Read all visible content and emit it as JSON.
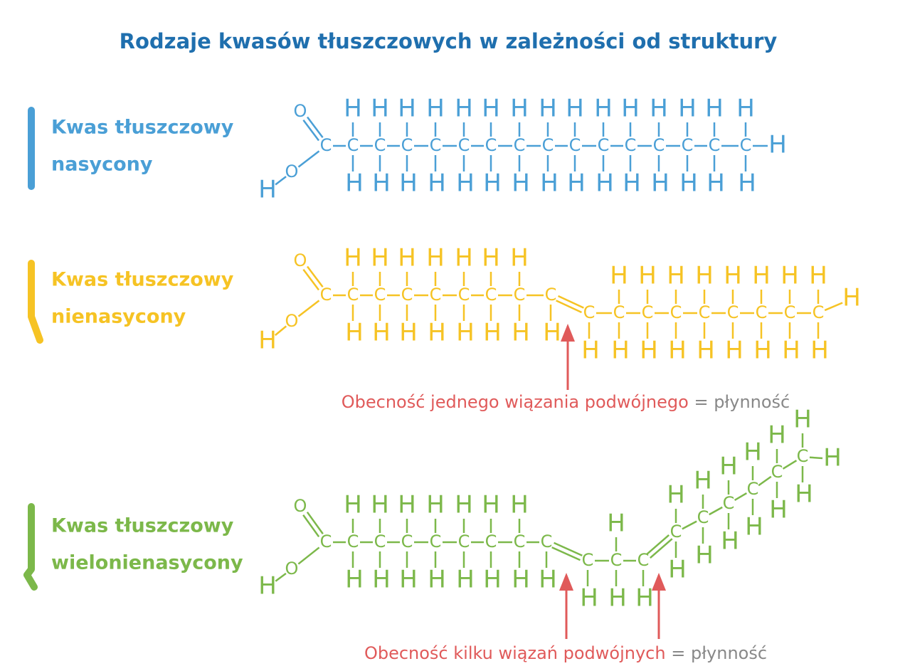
{
  "title": "Rodzaje kwasów tłuszczowych w zależności od struktury",
  "molecules": [
    {
      "label": [
        "Kwas tłuszczowy",
        "nasycony"
      ],
      "acid": {
        "carbon": "C",
        "oxygen_double": "O",
        "oxygen": "O",
        "hydrogen": "H"
      },
      "carbons": [
        {
          "atom": "C",
          "above": "H",
          "below": "H"
        },
        {
          "atom": "C",
          "above": "H",
          "below": "H"
        },
        {
          "atom": "C",
          "above": "H",
          "below": "H"
        },
        {
          "atom": "C",
          "above": "H",
          "below": "H"
        },
        {
          "atom": "C",
          "above": "H",
          "below": "H"
        },
        {
          "atom": "C",
          "above": "H",
          "below": "H"
        },
        {
          "atom": "C",
          "above": "H",
          "below": "H"
        },
        {
          "atom": "C",
          "above": "H",
          "below": "H"
        },
        {
          "atom": "C",
          "above": "H",
          "below": "H"
        },
        {
          "atom": "C",
          "above": "H",
          "below": "H"
        },
        {
          "atom": "C",
          "above": "H",
          "below": "H"
        },
        {
          "atom": "C",
          "above": "H",
          "below": "H"
        },
        {
          "atom": "C",
          "above": "H",
          "below": "H"
        },
        {
          "atom": "C",
          "above": "H",
          "below": "H"
        },
        {
          "atom": "C",
          "above": "H",
          "below": "H"
        }
      ],
      "end": "H"
    },
    {
      "label": [
        "Kwas tłuszczowy",
        "nienasycony"
      ],
      "acid": {
        "carbon": "C",
        "oxygen_double": "O",
        "oxygen": "O",
        "hydrogen": "H"
      },
      "carbons": [
        {
          "atom": "C",
          "above": "H",
          "below": "H"
        },
        {
          "atom": "C",
          "above": "H",
          "below": "H"
        },
        {
          "atom": "C",
          "above": "H",
          "below": "H"
        },
        {
          "atom": "C",
          "above": "H",
          "below": "H"
        },
        {
          "atom": "C",
          "above": "H",
          "below": "H"
        },
        {
          "atom": "C",
          "above": "H",
          "below": "H"
        },
        {
          "atom": "C",
          "above": "H",
          "below": "H"
        },
        {
          "atom": "C",
          "below": "H"
        },
        {
          "atom": "C",
          "below": "H"
        },
        {
          "atom": "C",
          "above": "H",
          "below": "H"
        },
        {
          "atom": "C",
          "above": "H",
          "below": "H"
        },
        {
          "atom": "C",
          "above": "H",
          "below": "H"
        },
        {
          "atom": "C",
          "above": "H",
          "below": "H"
        },
        {
          "atom": "C",
          "above": "H",
          "below": "H"
        },
        {
          "atom": "C",
          "above": "H",
          "below": "H"
        },
        {
          "atom": "C",
          "above": "H",
          "below": "H"
        },
        {
          "atom": "C",
          "above": "H",
          "below": "H"
        }
      ],
      "end": "H",
      "annotation": {
        "highlight": "Obecność jednego wiązania podwójnego",
        "sign": "=",
        "result": "płynność"
      }
    },
    {
      "label": [
        "Kwas tłuszczowy",
        "wielonienasycony"
      ],
      "acid": {
        "carbon": "C",
        "oxygen_double": "O",
        "oxygen": "O",
        "hydrogen": "H"
      },
      "carbons": [
        {
          "atom": "C",
          "above": "H",
          "below": "H"
        },
        {
          "atom": "C",
          "above": "H",
          "below": "H"
        },
        {
          "atom": "C",
          "above": "H",
          "below": "H"
        },
        {
          "atom": "C",
          "above": "H",
          "below": "H"
        },
        {
          "atom": "C",
          "above": "H",
          "below": "H"
        },
        {
          "atom": "C",
          "above": "H",
          "below": "H"
        },
        {
          "atom": "C",
          "above": "H",
          "below": "H"
        },
        {
          "atom": "C",
          "below": "H"
        },
        {
          "atom": "C",
          "below": "H"
        },
        {
          "atom": "C",
          "above": "H",
          "below": "H"
        },
        {
          "atom": "C",
          "below": "H"
        },
        {
          "atom": "C",
          "above": "H",
          "below": "H"
        },
        {
          "atom": "C",
          "above": "H",
          "below": "H"
        },
        {
          "atom": "C",
          "above": "H",
          "below": "H"
        },
        {
          "atom": "C",
          "above": "H",
          "below": "H"
        },
        {
          "atom": "C",
          "above": "H",
          "below": "H"
        },
        {
          "atom": "C",
          "above": "H",
          "below": "H"
        }
      ],
      "end": "H",
      "annotation": {
        "highlight": "Obecność kilku wiązań podwójnych",
        "sign": "=",
        "result": "płynność"
      }
    }
  ]
}
